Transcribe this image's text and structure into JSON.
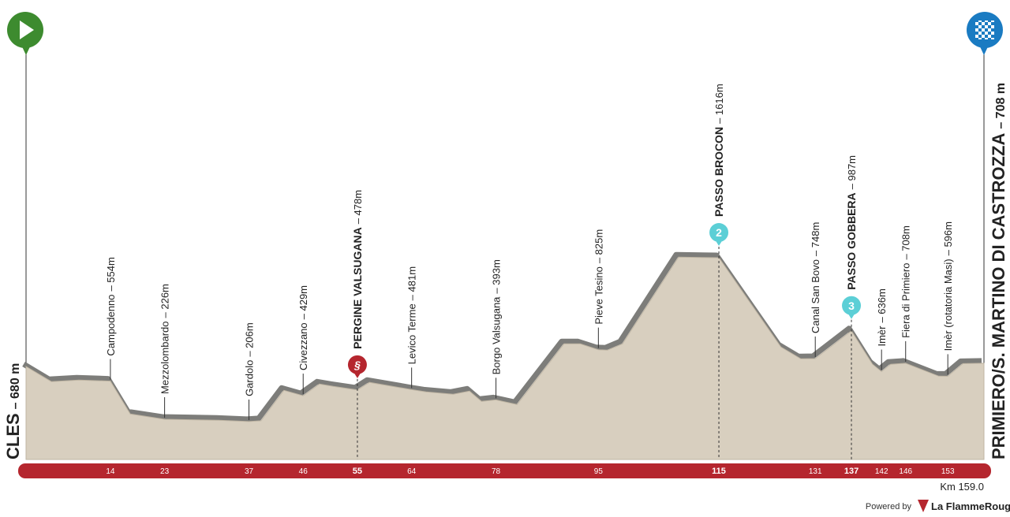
{
  "chart_data": {
    "type": "area",
    "start": {
      "name": "CLES",
      "elevation": "– 680 m"
    },
    "finish": {
      "name": "PRIMIERO/S. MARTINO DI CASTROZZA",
      "elevation": "– 708 m"
    },
    "x": [
      0,
      4.2,
      8.8,
      14,
      17.3,
      23,
      32,
      37,
      39,
      42.8,
      46,
      48.7,
      51,
      55,
      57,
      64,
      66.4,
      70.9,
      73.6,
      75.6,
      78,
      81.5,
      89.3,
      92,
      95,
      96.5,
      99,
      108.3,
      115,
      125.3,
      128.6,
      131,
      137,
      140.5,
      142,
      143.5,
      146,
      151.5,
      153,
      155.5,
      159
    ],
    "values": [
      680,
      550,
      563,
      554,
      271,
      226,
      217,
      206,
      213,
      475,
      429,
      529,
      509,
      478,
      543,
      481,
      461,
      441,
      468,
      380,
      393,
      353,
      875,
      875,
      825,
      821,
      875,
      1621,
      1616,
      848,
      746,
      748,
      987,
      700,
      636,
      699,
      708,
      597,
      596,
      705,
      708
    ],
    "color": "#d8cfbf",
    "xlim": [
      0,
      159
    ],
    "ylim": [
      -120,
      3800
    ],
    "waypoints": [
      {
        "name": "Campodenno",
        "elevation": "– 554m",
        "km": 14
      },
      {
        "name": "Mezzolombardo",
        "elevation": "– 226m",
        "km": 23
      },
      {
        "name": "Gardolo",
        "elevation": "– 206m",
        "km": 37
      },
      {
        "name": "Civezzano",
        "elevation": "– 429m",
        "km": 46
      },
      {
        "name": "PERGINE VALSUGANA",
        "elevation": "– 478m",
        "km": 55,
        "major": true,
        "badge_color": "#b5262e"
      },
      {
        "name": "Levico Terme",
        "elevation": "– 481m",
        "km": 64
      },
      {
        "name": "Borgo Valsugana",
        "elevation": "– 393m",
        "km": 78
      },
      {
        "name": "Pieve Tesino",
        "elevation": "– 825m",
        "km": 95
      },
      {
        "name": "PASSO BROCON",
        "elevation": "– 1616m",
        "km": 115,
        "major": true,
        "badge": "2",
        "badge_color": "#5ccfd6"
      },
      {
        "name": "Canal San Bovo",
        "elevation": "– 748m",
        "km": 131
      },
      {
        "name": "PASSO GOBBERA",
        "elevation": "– 987m",
        "km": 137,
        "major": true,
        "badge": "3",
        "badge_color": "#5ccfd6"
      },
      {
        "name": "Imèr",
        "elevation": "– 636m",
        "km": 142
      },
      {
        "name": "Fiera di Primiero",
        "elevation": "– 708m",
        "km": 146
      },
      {
        "name": "Imèr (rotatoria Masi)",
        "elevation": "– 596m",
        "km": 153
      }
    ],
    "distance_label": "Km 159.0",
    "footer": {
      "powered": "Powered by",
      "brand": "La FlammeRouge"
    }
  }
}
